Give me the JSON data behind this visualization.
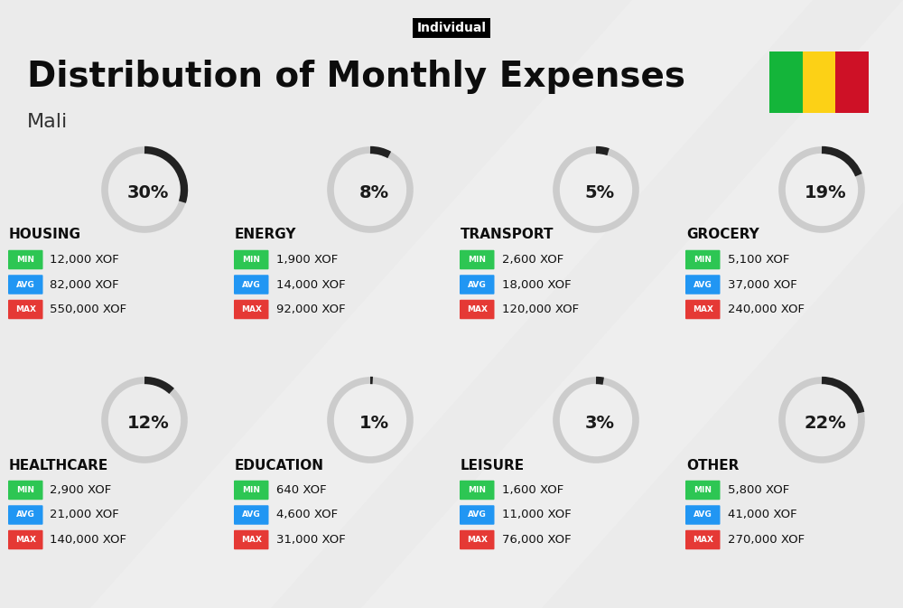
{
  "title": "Distribution of Monthly Expenses",
  "subtitle": "Individual",
  "country": "Mali",
  "background_color": "#ebebeb",
  "categories": [
    {
      "name": "HOUSING",
      "pct": 30,
      "min_val": "12,000 XOF",
      "avg_val": "82,000 XOF",
      "max_val": "550,000 XOF",
      "col": 0,
      "row": 0
    },
    {
      "name": "ENERGY",
      "pct": 8,
      "min_val": "1,900 XOF",
      "avg_val": "14,000 XOF",
      "max_val": "92,000 XOF",
      "col": 1,
      "row": 0
    },
    {
      "name": "TRANSPORT",
      "pct": 5,
      "min_val": "2,600 XOF",
      "avg_val": "18,000 XOF",
      "max_val": "120,000 XOF",
      "col": 2,
      "row": 0
    },
    {
      "name": "GROCERY",
      "pct": 19,
      "min_val": "5,100 XOF",
      "avg_val": "37,000 XOF",
      "max_val": "240,000 XOF",
      "col": 3,
      "row": 0
    },
    {
      "name": "HEALTHCARE",
      "pct": 12,
      "min_val": "2,900 XOF",
      "avg_val": "21,000 XOF",
      "max_val": "140,000 XOF",
      "col": 0,
      "row": 1
    },
    {
      "name": "EDUCATION",
      "pct": 1,
      "min_val": "640 XOF",
      "avg_val": "4,600 XOF",
      "max_val": "31,000 XOF",
      "col": 1,
      "row": 1
    },
    {
      "name": "LEISURE",
      "pct": 3,
      "min_val": "1,600 XOF",
      "avg_val": "11,000 XOF",
      "max_val": "76,000 XOF",
      "col": 2,
      "row": 1
    },
    {
      "name": "OTHER",
      "pct": 22,
      "min_val": "5,800 XOF",
      "avg_val": "41,000 XOF",
      "max_val": "270,000 XOF",
      "col": 3,
      "row": 1
    }
  ],
  "min_color": "#2dc653",
  "avg_color": "#2196f3",
  "max_color": "#e53935",
  "arc_color": "#222222",
  "arc_bg_color": "#cccccc",
  "flag_colors": [
    "#14b53a",
    "#fcd116",
    "#ce1126"
  ],
  "title_fontsize": 28,
  "subtitle_fontsize": 10,
  "country_fontsize": 16,
  "cat_fontsize": 11,
  "pct_fontsize": 14,
  "val_fontsize": 9.5,
  "badge_fontsize": 6.5
}
